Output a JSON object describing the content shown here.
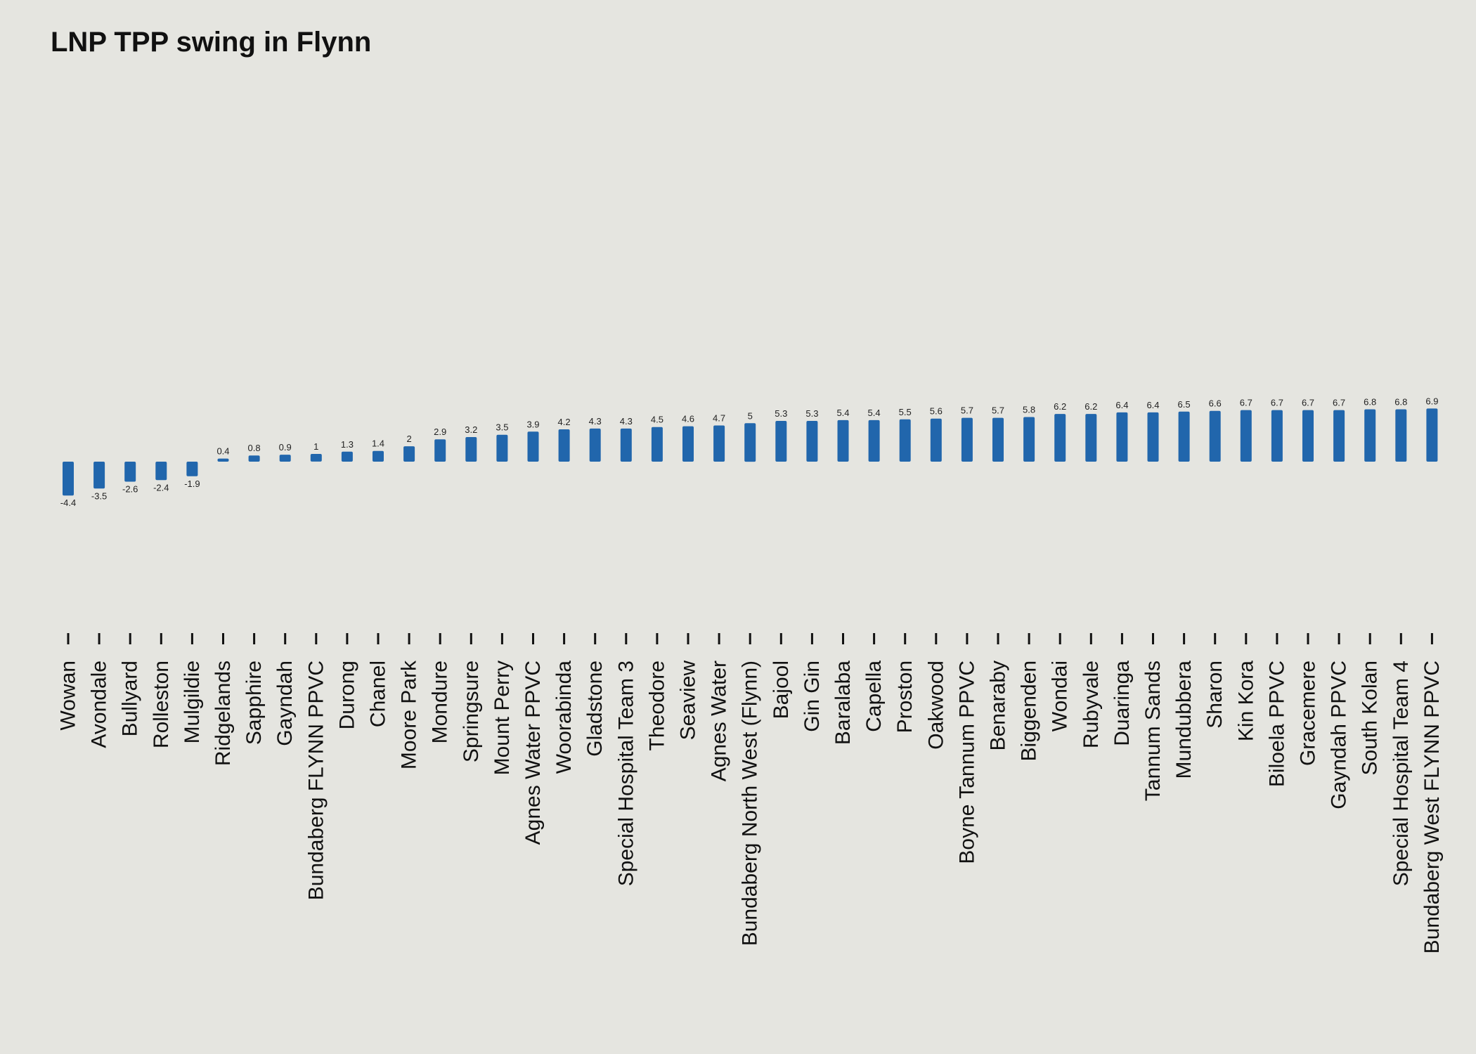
{
  "chart_data": {
    "type": "bar",
    "title": "LNP TPP swing in Flynn",
    "xlabel": "",
    "ylabel": "",
    "grid": false,
    "bar_color": "#2166ac",
    "background": "#e5e5e0",
    "categories": [
      "Wowan",
      "Avondale",
      "Bullyard",
      "Rolleston",
      "Mulgildie",
      "Ridgelands",
      "Sapphire",
      "Gayndah",
      "Bundaberg FLYNN PPVC",
      "Durong",
      "Chanel",
      "Moore Park",
      "Mondure",
      "Springsure",
      "Mount Perry",
      "Agnes Water PPVC",
      "Woorabinda",
      "Gladstone",
      "Special Hospital Team 3",
      "Theodore",
      "Seaview",
      "Agnes Water",
      "Bundaberg North West (Flynn)",
      "Bajool",
      "Gin Gin",
      "Baralaba",
      "Capella",
      "Proston",
      "Oakwood",
      "Boyne Tannum PPVC",
      "Benaraby",
      "Biggenden",
      "Wondai",
      "Rubyvale",
      "Duaringa",
      "Tannum Sands",
      "Mundubbera",
      "Sharon",
      "Kin Kora",
      "Biloela PPVC",
      "Gracemere",
      "Gayndah PPVC",
      "South Kolan",
      "Special Hospital Team 4",
      "Bundaberg West FLYNN PPVC"
    ],
    "values": [
      -4.4,
      -3.5,
      -2.6,
      -2.4,
      -1.9,
      0.4,
      0.8,
      0.9,
      1,
      1.3,
      1.4,
      2,
      2.9,
      3.2,
      3.5,
      3.9,
      4.2,
      4.3,
      4.3,
      4.5,
      4.6,
      4.7,
      5,
      5.3,
      5.3,
      5.4,
      5.4,
      5.5,
      5.6,
      5.7,
      5.7,
      5.8,
      6.2,
      6.2,
      6.4,
      6.4,
      6.5,
      6.6,
      6.7,
      6.7,
      6.7,
      6.7,
      6.8,
      6.8,
      6.9
    ],
    "value_labels": [
      "-4.4",
      "-3.5",
      "-2.6",
      "-2.4",
      "-1.9",
      "0.4",
      "0.8",
      "0.9",
      "1",
      "1.3",
      "1.4",
      "2",
      "2.9",
      "3.2",
      "3.5",
      "3.9",
      "4.2",
      "4.3",
      "4.3",
      "4.5",
      "4.6",
      "4.7",
      "5",
      "5.3",
      "5.3",
      "5.4",
      "5.4",
      "5.5",
      "5.6",
      "5.7",
      "5.7",
      "5.8",
      "6.2",
      "6.2",
      "6.4",
      "6.4",
      "6.5",
      "6.6",
      "6.7",
      "6.7",
      "6.7",
      "6.7",
      "6.8",
      "6.8",
      "6.9"
    ]
  }
}
